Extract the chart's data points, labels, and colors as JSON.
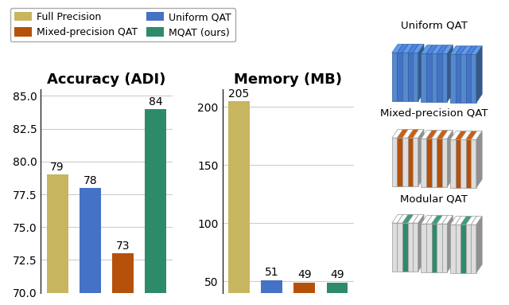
{
  "legend_labels": [
    "Full Precision",
    "Mixed-precision QAT",
    "Uniform QAT",
    "MQAT (ours)"
  ],
  "legend_colors": [
    "#C8B560",
    "#B5510A",
    "#4472C4",
    "#2E8B6A"
  ],
  "accuracy_title": "Accuracy (ADI)",
  "accuracy_values": [
    79,
    78,
    73,
    84
  ],
  "accuracy_colors": [
    "#C8B560",
    "#4472C4",
    "#B5510A",
    "#2E8B6A"
  ],
  "accuracy_ylim": [
    70.0,
    85.5
  ],
  "accuracy_yticks": [
    70.0,
    72.5,
    75.0,
    77.5,
    80.0,
    82.5,
    85.0
  ],
  "memory_title": "Memory (MB)",
  "memory_values": [
    205,
    51,
    49,
    49
  ],
  "memory_colors": [
    "#C8B560",
    "#4472C4",
    "#B5510A",
    "#2E8B6A"
  ],
  "memory_ylim": [
    40,
    215
  ],
  "memory_yticks": [
    50,
    100,
    150,
    200
  ],
  "diagram_labels": [
    "Uniform QAT",
    "Mixed-precision QAT",
    "Modular QAT"
  ],
  "diagram_colors_uniform": [
    "#4472C4",
    "#4472C4",
    "#4472C4"
  ],
  "diagram_colors_mixed": [
    "#B5510A",
    "#DDDDDD",
    "#B5510A"
  ],
  "diagram_colors_modular": [
    "#DDDDDD",
    "#2E8B6A",
    "#DDDDDD"
  ],
  "background_color": "#FFFFFF",
  "grid_color": "#CCCCCC",
  "title_fontsize": 13,
  "tick_fontsize": 10,
  "bar_value_fontsize": 10
}
